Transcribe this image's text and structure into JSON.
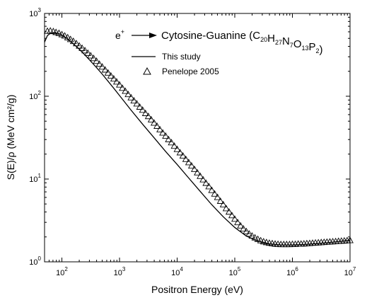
{
  "chart_data": {
    "type": "line",
    "title": "",
    "xlabel": "Positron Energy (eV)",
    "ylabel": "S(E)/ρ (MeV cm²/g)",
    "xscale": "log",
    "yscale": "log",
    "xlim": [
      50,
      10000000
    ],
    "ylim": [
      1,
      1000
    ],
    "grid": false,
    "legend_position": "top-right",
    "annotation": {
      "particle": "e",
      "charge": "+",
      "material_name": "Cytosine-Guanine",
      "formula": [
        {
          "el": "C",
          "n": "20"
        },
        {
          "el": "H",
          "n": "27"
        },
        {
          "el": "N",
          "n": "7"
        },
        {
          "el": "O",
          "n": "13"
        },
        {
          "el": "P",
          "n": "2"
        }
      ]
    },
    "x_ticks": [
      {
        "value": 100,
        "mantissa": "10",
        "exp": "2"
      },
      {
        "value": 1000,
        "mantissa": "10",
        "exp": "3"
      },
      {
        "value": 10000,
        "mantissa": "10",
        "exp": "4"
      },
      {
        "value": 100000,
        "mantissa": "10",
        "exp": "5"
      },
      {
        "value": 1000000,
        "mantissa": "10",
        "exp": "6"
      },
      {
        "value": 10000000,
        "mantissa": "10",
        "exp": "7"
      }
    ],
    "y_ticks": [
      {
        "value": 1,
        "mantissa": "10",
        "exp": "0"
      },
      {
        "value": 10,
        "mantissa": "10",
        "exp": "1"
      },
      {
        "value": 100,
        "mantissa": "10",
        "exp": "2"
      },
      {
        "value": 1000,
        "mantissa": "10",
        "exp": "3"
      }
    ],
    "series": [
      {
        "name": "This study",
        "style": "line",
        "color": "#000000",
        "x": [
          50,
          56,
          63,
          71,
          80,
          90,
          100,
          126,
          158,
          200,
          251,
          316,
          398,
          501,
          631,
          794,
          1000,
          1585,
          2512,
          3981,
          6310,
          10000,
          15849,
          25119,
          39811,
          63096,
          100000,
          158489,
          251189,
          398107,
          631000,
          1000000,
          1584893,
          2511886,
          3981072,
          6309573,
          10000000
        ],
        "y": [
          450,
          540,
          575,
          585,
          582,
          570,
          550,
          490,
          430,
          370,
          315,
          265,
          222,
          185,
          152,
          125,
          102,
          68,
          46,
          31.5,
          21.5,
          15,
          10.3,
          7.1,
          4.9,
          3.5,
          2.6,
          2.05,
          1.78,
          1.65,
          1.6,
          1.6,
          1.62,
          1.66,
          1.7,
          1.76,
          1.82
        ]
      },
      {
        "name": "Penelope 2005",
        "style": "markers",
        "marker": "open-triangle",
        "color": "#000000",
        "x": [
          56,
          63,
          71,
          79,
          89,
          100,
          112,
          126,
          141,
          158,
          178,
          200,
          224,
          251,
          282,
          316,
          355,
          398,
          447,
          501,
          562,
          631,
          708,
          794,
          891,
          1000,
          1122,
          1259,
          1413,
          1585,
          1778,
          1995,
          2239,
          2512,
          2818,
          3162,
          3548,
          3981,
          4467,
          5012,
          5623,
          6310,
          7079,
          7943,
          8913,
          10000,
          11220,
          12589,
          14125,
          15849,
          17783,
          19953,
          22387,
          25119,
          28184,
          31623,
          35481,
          39811,
          44668,
          50119,
          56234,
          63096,
          70795,
          79433,
          89125,
          100000,
          112202,
          125893,
          141254,
          158489,
          177828,
          199526,
          223872,
          251189,
          281838,
          316228,
          354813,
          398107,
          446684,
          501187,
          562341,
          630957,
          707946,
          794328,
          891251,
          1000000,
          1122018,
          1258925,
          1412538,
          1584893,
          1778279,
          1995262,
          2238721,
          2511886,
          2818383,
          3162278,
          3548134,
          3981072,
          4466836,
          5011872,
          5623413,
          6309573,
          7079458,
          7943282,
          8912509,
          10000000
        ],
        "y": [
          610,
          615,
          605,
          590,
          575,
          555,
          535,
          510,
          485,
          460,
          432,
          405,
          380,
          355,
          331,
          308,
          286,
          265,
          244,
          226,
          208,
          191,
          176,
          162,
          149,
          137,
          125,
          115,
          105,
          96,
          88,
          81,
          74,
          68,
          62,
          57,
          52,
          47.5,
          43.5,
          39.5,
          36,
          33,
          30,
          27.5,
          25,
          22.8,
          20.8,
          19,
          17.3,
          15.8,
          14.4,
          13.1,
          11.9,
          10.8,
          9.8,
          8.9,
          8.1,
          7.3,
          6.6,
          6.0,
          5.4,
          4.9,
          4.4,
          4.0,
          3.62,
          3.28,
          2.98,
          2.72,
          2.5,
          2.32,
          2.17,
          2.05,
          1.95,
          1.87,
          1.8,
          1.75,
          1.71,
          1.68,
          1.66,
          1.64,
          1.63,
          1.62,
          1.62,
          1.62,
          1.62,
          1.63,
          1.63,
          1.64,
          1.64,
          1.65,
          1.66,
          1.67,
          1.68,
          1.69,
          1.7,
          1.71,
          1.72,
          1.73,
          1.74,
          1.75,
          1.76,
          1.77,
          1.78,
          1.79,
          1.8,
          1.81
        ]
      }
    ]
  }
}
